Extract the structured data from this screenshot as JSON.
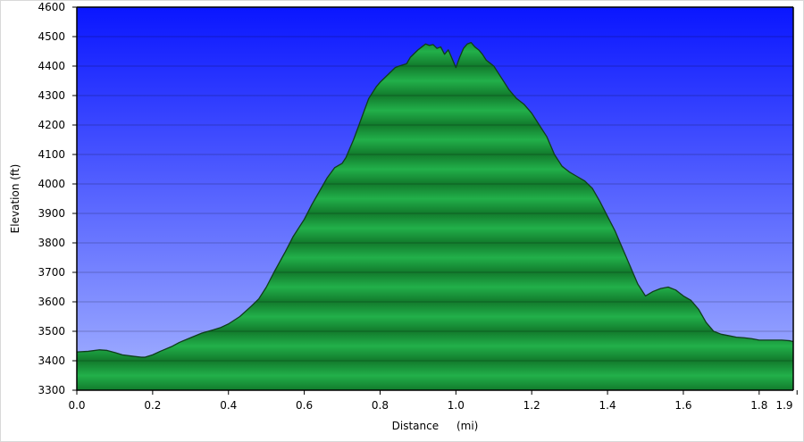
{
  "chart_data": {
    "type": "area",
    "title": "",
    "xlabel": "Distance",
    "xunit": "(mi)",
    "ylabel": "Elevation (ft)",
    "xlim": [
      0,
      1.89
    ],
    "ylim": [
      3300,
      4600
    ],
    "x_ticks": [
      0.0,
      0.2,
      0.4,
      0.6,
      0.8,
      1.0,
      1.2,
      1.4,
      1.6,
      1.8,
      1.9
    ],
    "x_tick_labels": [
      "0.0",
      "0.2",
      "0.4",
      "0.6",
      "0.8",
      "1.0",
      "1.2",
      "1.4",
      "1.6",
      "1.8",
      "1.9"
    ],
    "y_ticks": [
      3300,
      3400,
      3500,
      3600,
      3700,
      3800,
      3900,
      4000,
      4100,
      4200,
      4300,
      4400,
      4500,
      4600
    ],
    "grid": true,
    "legend": "none",
    "colors": {
      "sky_top": "#0a16ff",
      "sky_bottom": "#a6b4ff",
      "fill_light": "#22b04a",
      "fill_dark": "#127a2c",
      "outline": "#0f3d1a",
      "gridline": "#000000"
    },
    "series": [
      {
        "x": [
          0.0,
          0.03,
          0.06,
          0.08,
          0.1,
          0.12,
          0.15,
          0.17,
          0.18,
          0.2,
          0.22,
          0.25,
          0.27,
          0.3,
          0.33,
          0.36,
          0.38,
          0.4,
          0.43,
          0.46,
          0.48,
          0.5,
          0.52,
          0.55,
          0.57,
          0.6,
          0.62,
          0.64,
          0.66,
          0.68,
          0.7,
          0.71,
          0.73,
          0.75,
          0.77,
          0.79,
          0.8,
          0.82,
          0.84,
          0.85,
          0.87,
          0.88,
          0.9,
          0.91,
          0.92,
          0.93,
          0.94,
          0.95,
          0.96,
          0.97,
          0.98,
          0.99,
          1.0,
          1.01,
          1.02,
          1.03,
          1.04,
          1.05,
          1.06,
          1.07,
          1.08,
          1.09,
          1.1,
          1.12,
          1.14,
          1.16,
          1.18,
          1.2,
          1.22,
          1.24,
          1.26,
          1.28,
          1.3,
          1.32,
          1.34,
          1.36,
          1.38,
          1.4,
          1.42,
          1.44,
          1.46,
          1.48,
          1.5,
          1.52,
          1.54,
          1.56,
          1.58,
          1.6,
          1.62,
          1.64,
          1.66,
          1.68,
          1.7,
          1.72,
          1.74,
          1.76,
          1.78,
          1.8,
          1.82,
          1.84,
          1.86,
          1.88,
          1.89
        ],
        "y": [
          3430,
          3432,
          3437,
          3435,
          3428,
          3420,
          3415,
          3412,
          3412,
          3420,
          3432,
          3448,
          3462,
          3478,
          3494,
          3505,
          3513,
          3525,
          3550,
          3585,
          3610,
          3650,
          3700,
          3770,
          3820,
          3880,
          3930,
          3975,
          4020,
          4055,
          4070,
          4090,
          4150,
          4220,
          4290,
          4330,
          4345,
          4370,
          4395,
          4400,
          4408,
          4430,
          4455,
          4465,
          4475,
          4470,
          4473,
          4460,
          4465,
          4440,
          4455,
          4425,
          4395,
          4430,
          4460,
          4475,
          4480,
          4465,
          4455,
          4440,
          4420,
          4410,
          4400,
          4360,
          4320,
          4290,
          4270,
          4240,
          4200,
          4160,
          4100,
          4060,
          4040,
          4025,
          4010,
          3985,
          3940,
          3890,
          3840,
          3780,
          3720,
          3660,
          3620,
          3635,
          3645,
          3650,
          3640,
          3620,
          3605,
          3575,
          3530,
          3500,
          3490,
          3485,
          3480,
          3478,
          3475,
          3470,
          3470,
          3470,
          3470,
          3468,
          3465
        ]
      }
    ]
  }
}
